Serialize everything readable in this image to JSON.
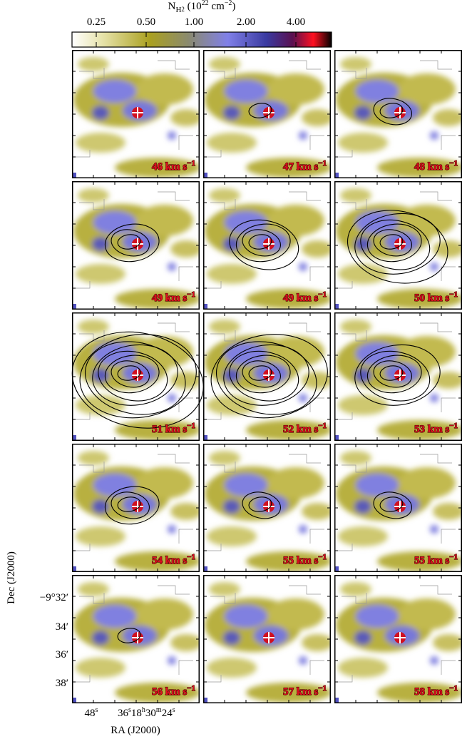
{
  "colorbar": {
    "title": [
      {
        "text": "N"
      },
      {
        "text": "H",
        "pos": "sub"
      },
      {
        "text": "2",
        "pos": "subsub"
      },
      {
        "text": " (10"
      },
      {
        "text": "22",
        "pos": "sup"
      },
      {
        "text": " cm"
      },
      {
        "text": "−2",
        "pos": "sup"
      },
      {
        "text": ")"
      }
    ],
    "ticks": [
      "0.25",
      "0.50",
      "1.00",
      "2.00",
      "4.00"
    ]
  },
  "panels": [
    {
      "label": "46 km s",
      "exp": "−1"
    },
    {
      "label": "47 km s",
      "exp": "−1"
    },
    {
      "label": "48 km s",
      "exp": "−1"
    },
    {
      "label": "49 km s",
      "exp": "−1"
    },
    {
      "label": "49 km s",
      "exp": "−1"
    },
    {
      "label": "50 km s",
      "exp": "−1"
    },
    {
      "label": "51 km s",
      "exp": "−1"
    },
    {
      "label": "52 km s",
      "exp": "−1"
    },
    {
      "label": "53 km s",
      "exp": "−1"
    },
    {
      "label": "54 km s",
      "exp": "−1"
    },
    {
      "label": "55 km s",
      "exp": "−1"
    },
    {
      "label": "55 km s",
      "exp": "−1"
    },
    {
      "label": "56 km s",
      "exp": "−1"
    },
    {
      "label": "57 km s",
      "exp": "−1"
    },
    {
      "label": "58 km s",
      "exp": "−1"
    }
  ],
  "axes": {
    "y_label": "Dec (J2000)",
    "x_label": "RA (J2000)",
    "y_ticks": [
      "−9°32′",
      "34′",
      "36′",
      "38′"
    ],
    "x_ticks": [
      [
        {
          "text": "48"
        },
        {
          "text": "s",
          "pos": "sup"
        }
      ],
      [
        {
          "text": "36"
        },
        {
          "text": "s",
          "pos": "sup"
        },
        {
          "text": "18"
        },
        {
          "text": "h",
          "pos": "sup"
        },
        {
          "text": "30"
        },
        {
          "text": "m",
          "pos": "sup"
        },
        {
          "text": "24"
        },
        {
          "text": "s",
          "pos": "sup"
        }
      ]
    ]
  }
}
